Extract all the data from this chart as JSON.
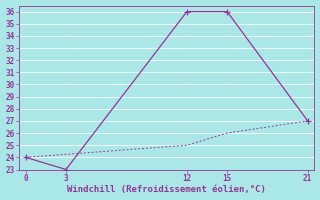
{
  "line1_x": [
    0,
    3,
    12,
    15,
    21
  ],
  "line1_y": [
    24,
    23,
    36,
    36,
    27
  ],
  "line2_x": [
    0,
    12,
    15,
    21
  ],
  "line2_y": [
    24,
    25,
    26,
    27
  ],
  "color": "#993399",
  "xlabel": "Windchill (Refroidissement éolien,°C)",
  "xlim": [
    -0.5,
    21.5
  ],
  "ylim": [
    23,
    36.5
  ],
  "xticks": [
    0,
    3,
    12,
    15,
    21
  ],
  "yticks": [
    23,
    24,
    25,
    26,
    27,
    28,
    29,
    30,
    31,
    32,
    33,
    34,
    35,
    36
  ],
  "bg_color": "#aae8e8",
  "grid_color": "#cceeee",
  "axis_fontsize": 6.5,
  "tick_fontsize": 5.5
}
